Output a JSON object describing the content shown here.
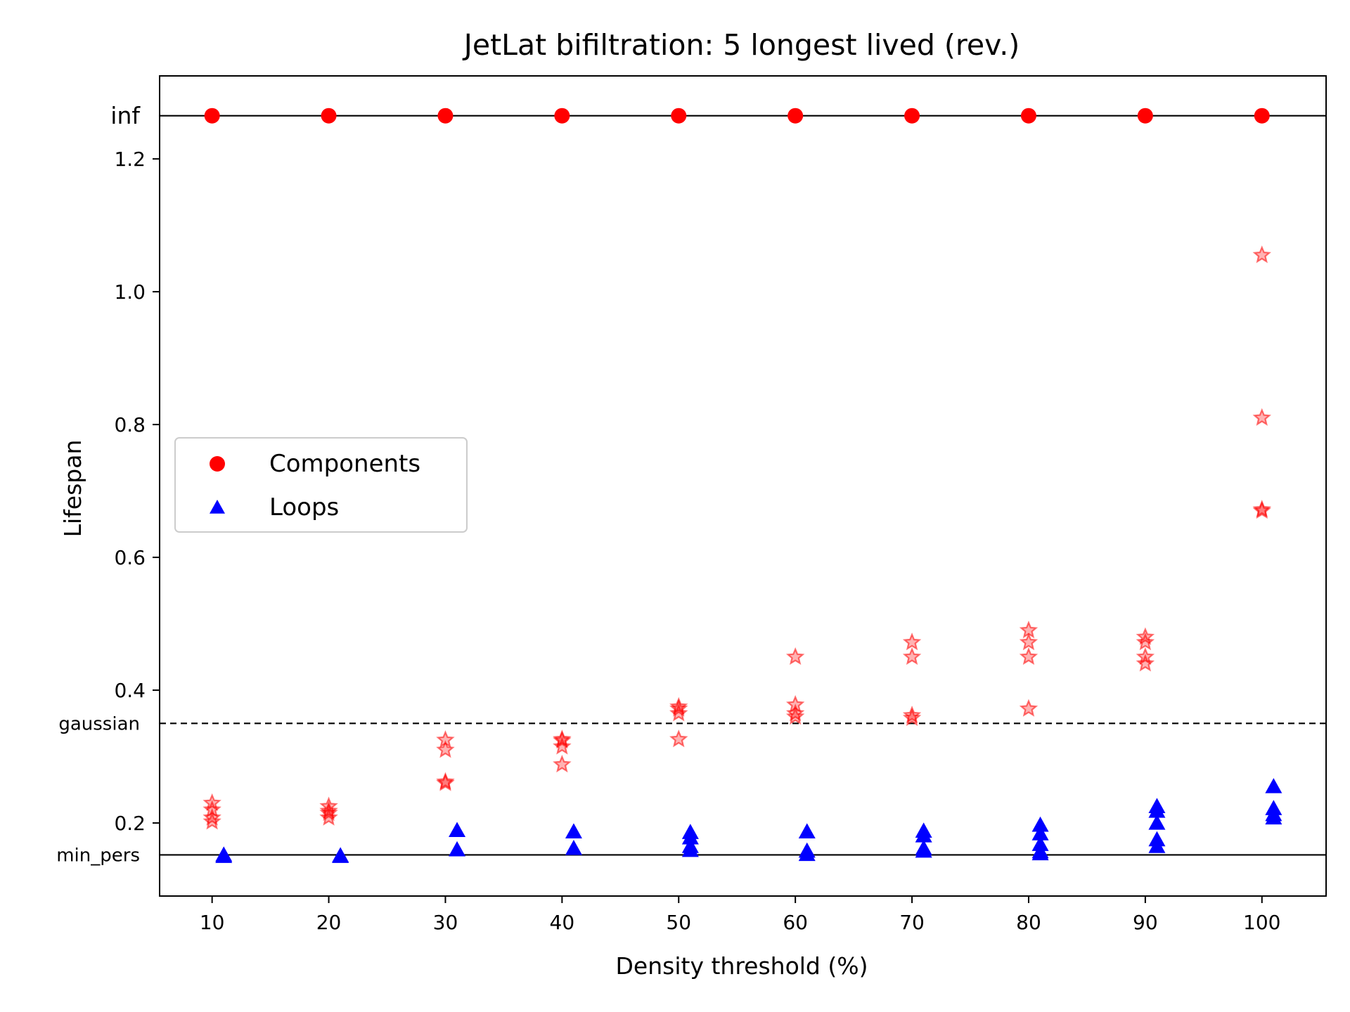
{
  "chart_data": {
    "type": "scatter",
    "title": "JetLat bifiltration: 5 longest lived (rev.)",
    "xlabel": "Density threshold (%)",
    "ylabel": "Lifespan",
    "xlim": [
      5.5,
      105.5
    ],
    "ylim": [
      0.09,
      1.325
    ],
    "x_ticks": [
      10,
      20,
      30,
      40,
      50,
      60,
      70,
      80,
      90,
      100
    ],
    "y_ticks": [
      0.2,
      0.4,
      0.6,
      0.8,
      1.0,
      1.2
    ],
    "y_tick_labels": [
      "0.2",
      "0.4",
      "0.6",
      "0.8",
      "1.0",
      "1.2"
    ],
    "reference_lines": [
      {
        "label": "inf",
        "y": 1.265,
        "style": "solid"
      },
      {
        "label": "gaussian",
        "y": 0.35,
        "style": "dashed"
      },
      {
        "label": "min_pers",
        "y": 0.152,
        "style": "solid"
      }
    ],
    "legend_position": "center-left",
    "series": [
      {
        "name": "Components",
        "marker": "circle",
        "color": "#ff0000",
        "x": [
          10,
          20,
          30,
          40,
          50,
          60,
          70,
          80,
          90,
          100
        ],
        "y": [
          1.265,
          1.265,
          1.265,
          1.265,
          1.265,
          1.265,
          1.265,
          1.265,
          1.265,
          1.265
        ]
      },
      {
        "name": "Loops",
        "marker": "triangle",
        "color": "#0000ff",
        "x": [
          11,
          11,
          21,
          21,
          31,
          31,
          41,
          41,
          51,
          51,
          51,
          51,
          61,
          61,
          61,
          71,
          71,
          71,
          71,
          81,
          81,
          81,
          81,
          81,
          91,
          91,
          91,
          91,
          91,
          101,
          101,
          101,
          101
        ],
        "y": [
          0.152,
          0.15,
          0.151,
          0.15,
          0.189,
          0.16,
          0.187,
          0.162,
          0.186,
          0.178,
          0.165,
          0.159,
          0.187,
          0.158,
          0.153,
          0.188,
          0.181,
          0.162,
          0.158,
          0.197,
          0.184,
          0.168,
          0.157,
          0.154,
          0.225,
          0.218,
          0.2,
          0.175,
          0.165,
          0.255,
          0.222,
          0.213,
          0.208
        ]
      },
      {
        "name": "",
        "marker": "star",
        "color": "#ff0000",
        "x": [
          10,
          10,
          10,
          10,
          20,
          20,
          20,
          20,
          30,
          30,
          30,
          30,
          40,
          40,
          40,
          40,
          50,
          50,
          50,
          50,
          60,
          60,
          60,
          60,
          70,
          70,
          70,
          70,
          80,
          80,
          80,
          80,
          90,
          90,
          90,
          90,
          100,
          100,
          100,
          100
        ],
        "y": [
          0.23,
          0.22,
          0.208,
          0.202,
          0.225,
          0.218,
          0.215,
          0.208,
          0.325,
          0.31,
          0.262,
          0.26,
          0.326,
          0.324,
          0.315,
          0.288,
          0.375,
          0.372,
          0.365,
          0.326,
          0.45,
          0.378,
          0.365,
          0.36,
          0.472,
          0.45,
          0.362,
          0.358,
          0.49,
          0.472,
          0.45,
          0.372,
          0.48,
          0.472,
          0.45,
          0.44,
          1.055,
          0.81,
          0.672,
          0.67
        ]
      }
    ]
  }
}
